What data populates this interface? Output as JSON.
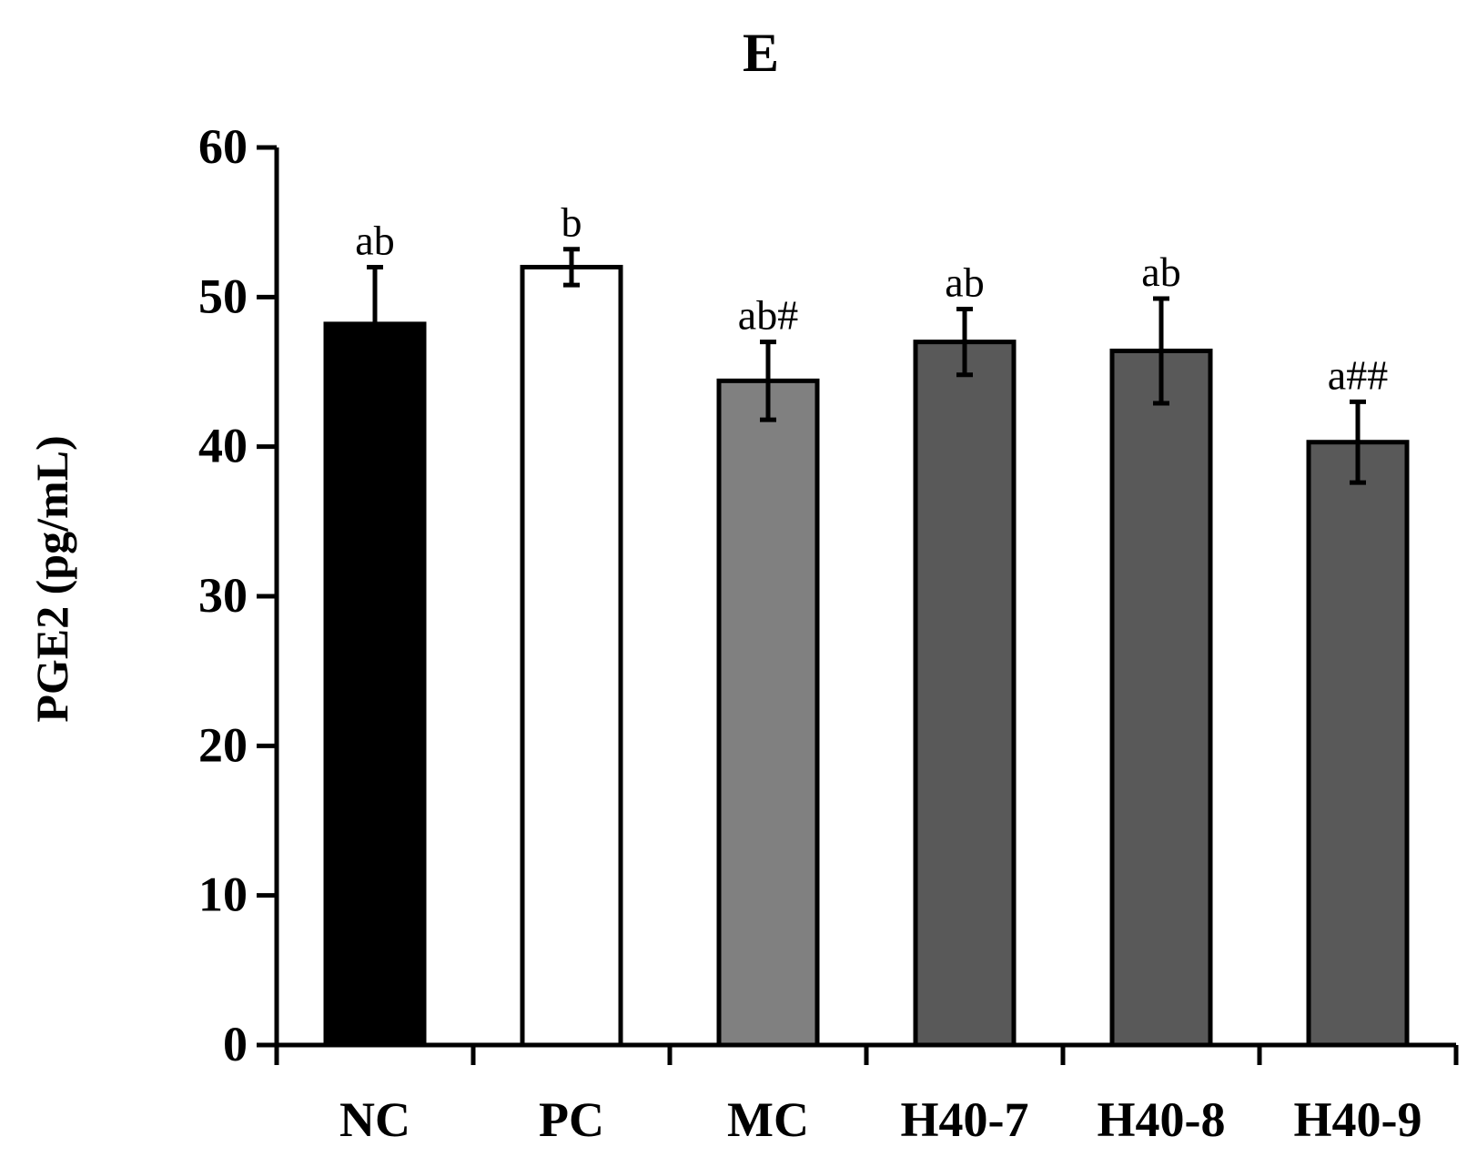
{
  "chart_data": {
    "type": "bar",
    "title": "E",
    "xlabel": "",
    "ylabel": "PGE2 (pg/mL)",
    "ylim": [
      0,
      60
    ],
    "yticks": [
      0,
      10,
      20,
      30,
      40,
      50,
      60
    ],
    "grid": false,
    "legend": "none",
    "categories": [
      "NC",
      "PC",
      "MC",
      "H40-7",
      "H40-8",
      "H40-9"
    ],
    "values": [
      48.2,
      52.0,
      44.4,
      47.0,
      46.4,
      40.3
    ],
    "errors": [
      3.8,
      1.2,
      2.6,
      2.2,
      3.5,
      2.7
    ],
    "annotations": [
      "ab",
      "b",
      "ab#",
      "ab",
      "ab",
      "a##"
    ],
    "colors": [
      "#000000",
      "#ffffff",
      "#808080",
      "#595959",
      "#595959",
      "#595959"
    ]
  }
}
